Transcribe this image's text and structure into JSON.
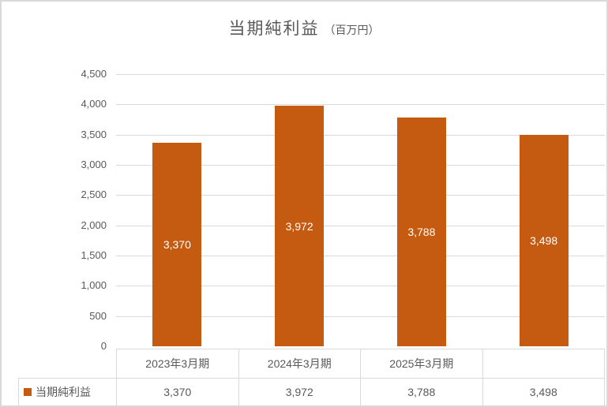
{
  "chart": {
    "title_main": "当期純利益",
    "title_unit": "（百万円）",
    "colors": {
      "bar": "#C55A11",
      "text": "#595959",
      "gridline": "#D9D9D9",
      "chart_border": "#D9D9D9",
      "data_label": "#FFFFFF"
    }
  },
  "chart_data": {
    "type": "bar",
    "title": "当期純利益（百万円）",
    "categories": [
      "2023年3月期",
      "2024年3月期",
      "2025年3月期",
      ""
    ],
    "series": [
      {
        "name": "当期純利益",
        "values": [
          3370,
          3972,
          3788,
          3498
        ]
      }
    ],
    "data_labels": [
      "3,370",
      "3,972",
      "3,788",
      "3,498"
    ],
    "xlabel": "",
    "ylabel": "",
    "ylim": [
      0,
      4500
    ],
    "ytick_step": 500,
    "yticks": [
      "0",
      "500",
      "1,000",
      "1,500",
      "2,000",
      "2,500",
      "3,000",
      "3,500",
      "4,000",
      "4,500"
    ],
    "grid": true,
    "legend_position": "data-table",
    "data_table": {
      "row_header": "当期純利益",
      "values": [
        "3,370",
        "3,972",
        "3,788",
        "3,498"
      ]
    }
  }
}
